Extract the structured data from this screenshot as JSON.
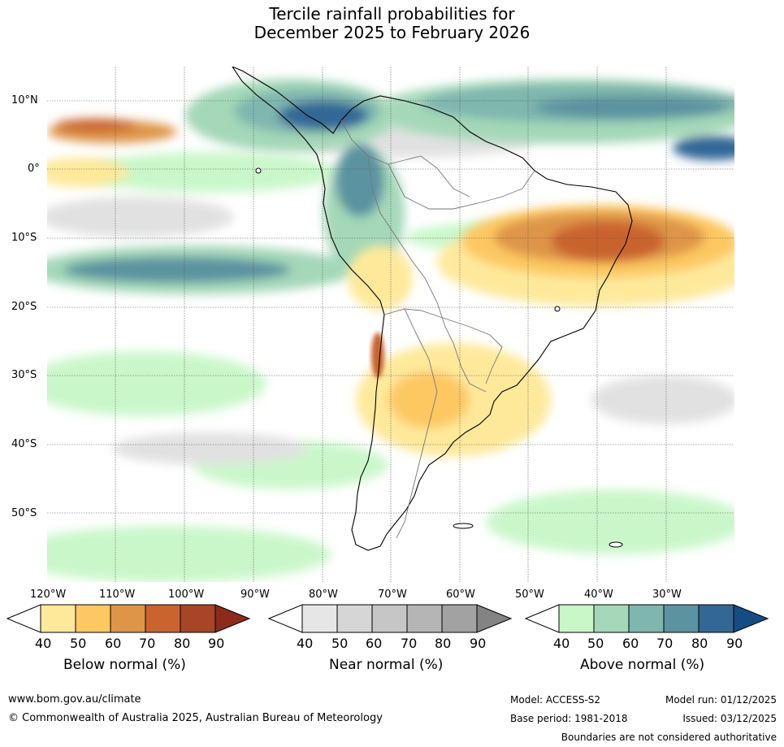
{
  "title": {
    "line1": "Tercile rainfall probabilities for",
    "line2": "December 2025 to February 2026"
  },
  "axes": {
    "lat_labels": [
      "10°N",
      "0°",
      "10°S",
      "20°S",
      "30°S",
      "40°S",
      "50°S"
    ],
    "lon_labels": [
      "120°W",
      "110°W",
      "100°W",
      "90°W",
      "80°W",
      "70°W",
      "60°W",
      "50°W",
      "40°W",
      "30°W"
    ]
  },
  "legend": {
    "below": {
      "title": "Below normal (%)",
      "ticks": [
        "40",
        "50",
        "60",
        "70",
        "80",
        "90"
      ],
      "colors": [
        "#ffffff",
        "#fee99b",
        "#fdc862",
        "#de9548",
        "#c9642f",
        "#a84526",
        "#8a2b1b"
      ]
    },
    "near": {
      "title": "Near normal (%)",
      "ticks": [
        "40",
        "50",
        "60",
        "70",
        "80",
        "90"
      ],
      "colors": [
        "#ffffff",
        "#e6e6e6",
        "#d6d6d6",
        "#c6c6c6",
        "#b5b5b5",
        "#a2a2a2",
        "#838383"
      ]
    },
    "above": {
      "title": "Above normal (%)",
      "ticks": [
        "40",
        "50",
        "60",
        "70",
        "80",
        "90"
      ],
      "colors": [
        "#ffffff",
        "#c8f7c8",
        "#a4d8b8",
        "#7fb6ae",
        "#5b93a0",
        "#336896",
        "#144d83"
      ]
    }
  },
  "footer": {
    "url": "www.bom.gov.au/climate",
    "copyright": "© Commonwealth of Australia 2025, Australian Bureau of Meteorology",
    "model": "Model: ACCESS-S2",
    "base_period": "Base period: 1981-2018",
    "model_run": "Model run: 01/12/2025",
    "issued": "Issued: 03/12/2025",
    "disclaimer": "Boundaries are not considered authoritative"
  }
}
